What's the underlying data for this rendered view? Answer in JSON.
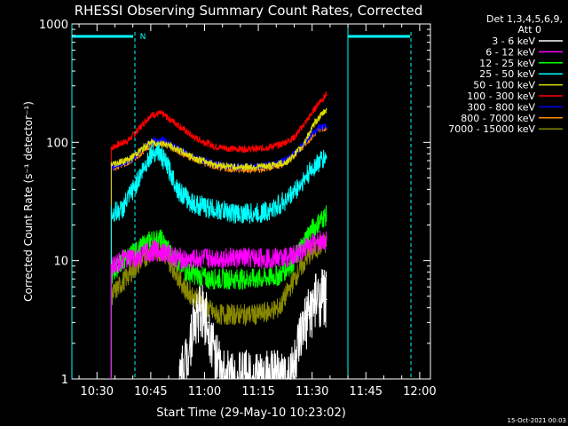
{
  "chart_data": {
    "type": "line",
    "title": "RHESSI Observing Summary Count Rates, Corrected",
    "xlabel": "Start Time (29-May-10 10:23:02)",
    "ylabel": "Corrected Count Rate (s⁻¹ detector⁻¹)",
    "y_scale": "log",
    "ylim": [
      1,
      1000
    ],
    "xlim_minutes": [
      0,
      100
    ],
    "x_ticks": [
      {
        "label": "10:30",
        "minute": 7
      },
      {
        "label": "10:45",
        "minute": 22
      },
      {
        "label": "11:00",
        "minute": 37
      },
      {
        "label": "11:15",
        "minute": 52
      },
      {
        "label": "11:30",
        "minute": 67
      },
      {
        "label": "11:45",
        "minute": 82
      },
      {
        "label": "12:00",
        "minute": 97
      }
    ],
    "y_ticks": [
      {
        "label": "1",
        "value": 1
      },
      {
        "label": "10",
        "value": 10
      },
      {
        "label": "100",
        "value": 100
      },
      {
        "label": "1000",
        "value": 1000
      }
    ],
    "legend_header": [
      "Det 1,3,4,5,6,9,",
      "Att 0"
    ],
    "night_marker_label": "N",
    "series": [
      {
        "name": "3 - 6 keV",
        "color": "#ffffff",
        "points": [
          [
            30,
            1
          ],
          [
            32,
            1.5
          ],
          [
            34,
            3
          ],
          [
            36,
            3.8
          ],
          [
            38,
            3
          ],
          [
            40,
            1.5
          ],
          [
            42,
            1
          ],
          [
            60,
            1
          ],
          [
            62,
            1.3
          ],
          [
            64,
            2.2
          ],
          [
            66,
            3.5
          ],
          [
            68,
            4.5
          ],
          [
            70,
            5
          ],
          [
            71,
            4.7
          ]
        ]
      },
      {
        "name": "6 - 12 keV",
        "color": "#ff00ff",
        "points": [
          [
            11,
            9
          ],
          [
            14,
            10
          ],
          [
            18,
            10.5
          ],
          [
            22,
            12
          ],
          [
            25,
            12
          ],
          [
            28,
            11
          ],
          [
            32,
            10
          ],
          [
            38,
            10.5
          ],
          [
            45,
            10.5
          ],
          [
            52,
            10.5
          ],
          [
            58,
            10.5
          ],
          [
            62,
            11
          ],
          [
            66,
            13.5
          ],
          [
            70,
            15
          ],
          [
            71,
            14.5
          ]
        ]
      },
      {
        "name": "12 - 25 keV",
        "color": "#00ff00",
        "points": [
          [
            11,
            7.5
          ],
          [
            14,
            10
          ],
          [
            18,
            12
          ],
          [
            22,
            15
          ],
          [
            25,
            15
          ],
          [
            28,
            11
          ],
          [
            32,
            8
          ],
          [
            38,
            7
          ],
          [
            45,
            7
          ],
          [
            52,
            7
          ],
          [
            58,
            7.5
          ],
          [
            62,
            10
          ],
          [
            66,
            17
          ],
          [
            70,
            23
          ],
          [
            71,
            24
          ]
        ]
      },
      {
        "name": "25 - 50 keV",
        "color": "#00ffff",
        "points": [
          [
            11,
            25
          ],
          [
            14,
            27
          ],
          [
            18,
            45
          ],
          [
            22,
            80
          ],
          [
            24,
            85
          ],
          [
            27,
            60
          ],
          [
            30,
            38
          ],
          [
            34,
            30
          ],
          [
            40,
            27
          ],
          [
            46,
            25
          ],
          [
            52,
            25
          ],
          [
            56,
            27
          ],
          [
            60,
            33
          ],
          [
            64,
            45
          ],
          [
            68,
            65
          ],
          [
            71,
            75
          ]
        ]
      },
      {
        "name": "50 - 100 keV",
        "color": "#dddd00",
        "points": [
          [
            11,
            65
          ],
          [
            16,
            72
          ],
          [
            22,
            100
          ],
          [
            26,
            97
          ],
          [
            30,
            85
          ],
          [
            35,
            72
          ],
          [
            40,
            65
          ],
          [
            45,
            62
          ],
          [
            50,
            62
          ],
          [
            55,
            63
          ],
          [
            60,
            68
          ],
          [
            64,
            90
          ],
          [
            68,
            150
          ],
          [
            71,
            190
          ]
        ]
      },
      {
        "name": "100 - 300 keV",
        "color": "#ff0000",
        "points": [
          [
            11,
            90
          ],
          [
            16,
            105
          ],
          [
            22,
            170
          ],
          [
            25,
            175
          ],
          [
            29,
            145
          ],
          [
            34,
            110
          ],
          [
            40,
            92
          ],
          [
            45,
            88
          ],
          [
            52,
            88
          ],
          [
            58,
            95
          ],
          [
            62,
            110
          ],
          [
            66,
            160
          ],
          [
            69,
            220
          ],
          [
            71,
            250
          ]
        ]
      },
      {
        "name": "300 - 800 keV",
        "color": "#0000ff",
        "points": [
          [
            11,
            62
          ],
          [
            16,
            70
          ],
          [
            22,
            100
          ],
          [
            25,
            105
          ],
          [
            29,
            90
          ],
          [
            34,
            75
          ],
          [
            40,
            65
          ],
          [
            45,
            62
          ],
          [
            52,
            62
          ],
          [
            58,
            67
          ],
          [
            62,
            80
          ],
          [
            66,
            110
          ],
          [
            69,
            135
          ],
          [
            71,
            135
          ]
        ]
      },
      {
        "name": "800 - 7000 keV",
        "color": "#ff8800",
        "points": [
          [
            11,
            60
          ],
          [
            16,
            68
          ],
          [
            22,
            95
          ],
          [
            25,
            100
          ],
          [
            29,
            87
          ],
          [
            34,
            72
          ],
          [
            40,
            62
          ],
          [
            45,
            59
          ],
          [
            52,
            59
          ],
          [
            58,
            64
          ],
          [
            62,
            77
          ],
          [
            66,
            105
          ],
          [
            69,
            130
          ],
          [
            71,
            130
          ]
        ]
      },
      {
        "name": "7000 - 15000 keV",
        "color": "#888800",
        "points": [
          [
            11,
            5
          ],
          [
            14,
            6.5
          ],
          [
            18,
            9
          ],
          [
            22,
            12
          ],
          [
            25,
            12
          ],
          [
            28,
            9
          ],
          [
            32,
            5.5
          ],
          [
            36,
            4.5
          ],
          [
            40,
            3.5
          ],
          [
            46,
            3.5
          ],
          [
            52,
            3.5
          ],
          [
            58,
            4
          ],
          [
            62,
            7
          ],
          [
            66,
            11
          ],
          [
            70,
            14
          ],
          [
            71,
            13.5
          ]
        ]
      }
    ]
  },
  "footer_date": "15-Oct-2021 00:03"
}
